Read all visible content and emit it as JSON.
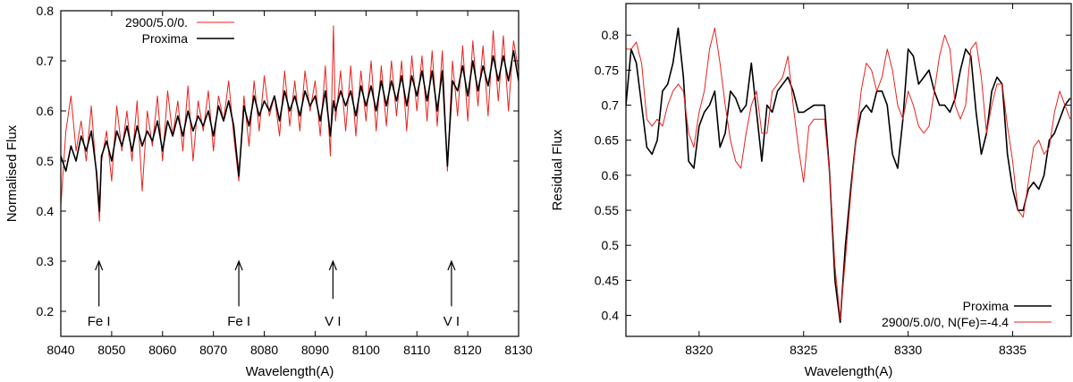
{
  "chart_data": [
    {
      "type": "line",
      "title": "",
      "xlabel": "Wavelength(A)",
      "ylabel": "Normalised Flux",
      "xlim": [
        8040,
        8130
      ],
      "ylim": [
        0.15,
        0.8
      ],
      "xticks": [
        8040,
        8050,
        8060,
        8070,
        8080,
        8090,
        8100,
        8110,
        8120,
        8130
      ],
      "yticks": [
        0.2,
        0.3,
        0.4,
        0.5,
        0.6,
        0.7,
        0.8
      ],
      "ytick_labels": [
        "0.2",
        "0.3",
        "0.4",
        "0.5",
        "0.6",
        "0.7",
        "0.8"
      ],
      "legend": "top-left",
      "series": [
        {
          "name": "2900/5.0/0.",
          "color": "#e8221e",
          "x": [
            8040,
            8041,
            8042,
            8043,
            8044,
            8045,
            8046,
            8047,
            8047.6,
            8048,
            8049,
            8050,
            8051,
            8052,
            8053,
            8054,
            8055,
            8056,
            8057,
            8058,
            8059,
            8060,
            8061,
            8062,
            8063,
            8064,
            8065,
            8066,
            8067,
            8068,
            8069,
            8070,
            8071,
            8072,
            8073,
            8074,
            8075,
            8076,
            8077,
            8078,
            8079,
            8080,
            8081,
            8082,
            8083,
            8084,
            8085,
            8086,
            8087,
            8088,
            8089,
            8090,
            8091,
            8092,
            8093,
            8093.6,
            8094,
            8095,
            8096,
            8097,
            8098,
            8099,
            8100,
            8101,
            8102,
            8103,
            8104,
            8105,
            8106,
            8107,
            8108,
            8109,
            8110,
            8111,
            8112,
            8113,
            8114,
            8115,
            8116,
            8117,
            8118,
            8119,
            8120,
            8121,
            8122,
            8123,
            8124,
            8125,
            8126,
            8127,
            8128,
            8129,
            8130
          ],
          "y": [
            0.41,
            0.56,
            0.63,
            0.52,
            0.58,
            0.5,
            0.61,
            0.47,
            0.38,
            0.5,
            0.56,
            0.46,
            0.61,
            0.52,
            0.6,
            0.5,
            0.62,
            0.44,
            0.6,
            0.53,
            0.63,
            0.5,
            0.64,
            0.55,
            0.62,
            0.52,
            0.65,
            0.5,
            0.62,
            0.56,
            0.64,
            0.52,
            0.63,
            0.58,
            0.66,
            0.55,
            0.46,
            0.63,
            0.53,
            0.66,
            0.56,
            0.67,
            0.59,
            0.63,
            0.55,
            0.68,
            0.57,
            0.66,
            0.56,
            0.68,
            0.6,
            0.66,
            0.55,
            0.69,
            0.51,
            0.77,
            0.58,
            0.68,
            0.56,
            0.69,
            0.55,
            0.68,
            0.58,
            0.7,
            0.56,
            0.69,
            0.57,
            0.7,
            0.59,
            0.7,
            0.56,
            0.71,
            0.6,
            0.71,
            0.58,
            0.72,
            0.57,
            0.72,
            0.48,
            0.7,
            0.59,
            0.73,
            0.58,
            0.74,
            0.61,
            0.73,
            0.59,
            0.76,
            0.62,
            0.75,
            0.6,
            0.74,
            0.68
          ]
        },
        {
          "name": "Proxima",
          "color": "#000000",
          "x": [
            8040,
            8041,
            8042,
            8043,
            8044,
            8045,
            8046,
            8047,
            8047.6,
            8048,
            8049,
            8050,
            8051,
            8052,
            8053,
            8054,
            8055,
            8056,
            8057,
            8058,
            8059,
            8060,
            8061,
            8062,
            8063,
            8064,
            8065,
            8066,
            8067,
            8068,
            8069,
            8070,
            8071,
            8072,
            8073,
            8074,
            8075,
            8076,
            8077,
            8078,
            8079,
            8080,
            8081,
            8082,
            8083,
            8084,
            8085,
            8086,
            8087,
            8088,
            8089,
            8090,
            8091,
            8092,
            8093,
            8093.6,
            8094,
            8095,
            8096,
            8097,
            8098,
            8099,
            8100,
            8101,
            8102,
            8103,
            8104,
            8105,
            8106,
            8107,
            8108,
            8109,
            8110,
            8111,
            8112,
            8113,
            8114,
            8115,
            8116,
            8117,
            8118,
            8119,
            8120,
            8121,
            8122,
            8123,
            8124,
            8125,
            8126,
            8127,
            8128,
            8129,
            8130
          ],
          "y": [
            0.51,
            0.48,
            0.53,
            0.5,
            0.55,
            0.52,
            0.56,
            0.48,
            0.4,
            0.51,
            0.54,
            0.5,
            0.56,
            0.53,
            0.57,
            0.52,
            0.57,
            0.53,
            0.56,
            0.54,
            0.58,
            0.52,
            0.58,
            0.55,
            0.59,
            0.55,
            0.6,
            0.56,
            0.59,
            0.57,
            0.6,
            0.55,
            0.61,
            0.58,
            0.62,
            0.57,
            0.47,
            0.61,
            0.57,
            0.63,
            0.59,
            0.62,
            0.6,
            0.63,
            0.58,
            0.64,
            0.6,
            0.63,
            0.59,
            0.64,
            0.61,
            0.63,
            0.58,
            0.64,
            0.55,
            0.62,
            0.6,
            0.64,
            0.61,
            0.64,
            0.59,
            0.65,
            0.61,
            0.65,
            0.6,
            0.66,
            0.61,
            0.66,
            0.62,
            0.67,
            0.61,
            0.67,
            0.63,
            0.68,
            0.62,
            0.68,
            0.6,
            0.68,
            0.49,
            0.66,
            0.64,
            0.69,
            0.63,
            0.7,
            0.64,
            0.69,
            0.65,
            0.71,
            0.66,
            0.71,
            0.66,
            0.72,
            0.66
          ]
        }
      ],
      "annotations": [
        {
          "label": "Fe I",
          "x": 8047.5,
          "arrow_tip": 0.3,
          "arrow_base": 0.21
        },
        {
          "label": "Fe I",
          "x": 8075,
          "arrow_tip": 0.3,
          "arrow_base": 0.21
        },
        {
          "label": "V I",
          "x": 8093.5,
          "arrow_tip": 0.3,
          "arrow_base": 0.225
        },
        {
          "label": "V I",
          "x": 8116.8,
          "arrow_tip": 0.3,
          "arrow_base": 0.21
        }
      ]
    },
    {
      "type": "line",
      "title": "",
      "xlabel": "Wavelength(A)",
      "ylabel": "Residual Flux",
      "xlim": [
        8316.5,
        8337.8
      ],
      "ylim": [
        0.37,
        0.845
      ],
      "xticks": [
        8320,
        8325,
        8330,
        8335
      ],
      "yticks": [
        0.4,
        0.45,
        0.5,
        0.55,
        0.6,
        0.65,
        0.7,
        0.75,
        0.8
      ],
      "ytick_labels": [
        "0.4",
        "0.45",
        "0.5",
        "0.55",
        "0.6",
        "0.65",
        "0.7",
        "0.75",
        "0.8"
      ],
      "legend": "bottom-right",
      "series": [
        {
          "name": "Proxima",
          "color": "#000000",
          "x": [
            8316.5,
            8316.75,
            8317,
            8317.25,
            8317.5,
            8317.75,
            8318,
            8318.25,
            8318.5,
            8318.75,
            8319,
            8319.25,
            8319.5,
            8319.75,
            8320,
            8320.25,
            8320.5,
            8320.75,
            8321,
            8321.25,
            8321.5,
            8321.75,
            8322,
            8322.25,
            8322.5,
            8322.75,
            8323,
            8323.25,
            8323.5,
            8323.75,
            8324,
            8324.25,
            8324.5,
            8324.75,
            8325,
            8325.25,
            8325.5,
            8325.75,
            8326,
            8326.25,
            8326.5,
            8326.75,
            8327,
            8327.25,
            8327.5,
            8327.75,
            8328,
            8328.25,
            8328.5,
            8328.75,
            8329,
            8329.25,
            8329.5,
            8329.75,
            8330,
            8330.25,
            8330.5,
            8330.75,
            8331,
            8331.25,
            8331.5,
            8331.75,
            8332,
            8332.25,
            8332.5,
            8332.75,
            8333,
            8333.25,
            8333.5,
            8333.75,
            8334,
            8334.25,
            8334.5,
            8334.75,
            8335,
            8335.25,
            8335.5,
            8335.75,
            8336,
            8336.25,
            8336.5,
            8336.75,
            8337,
            8337.25,
            8337.5,
            8337.75
          ],
          "y": [
            0.7,
            0.78,
            0.76,
            0.7,
            0.64,
            0.63,
            0.65,
            0.72,
            0.73,
            0.76,
            0.81,
            0.74,
            0.62,
            0.61,
            0.67,
            0.69,
            0.7,
            0.72,
            0.64,
            0.66,
            0.72,
            0.71,
            0.69,
            0.7,
            0.76,
            0.69,
            0.62,
            0.7,
            0.69,
            0.72,
            0.73,
            0.74,
            0.72,
            0.69,
            0.69,
            0.695,
            0.7,
            0.7,
            0.7,
            0.6,
            0.45,
            0.39,
            0.5,
            0.58,
            0.65,
            0.69,
            0.7,
            0.69,
            0.72,
            0.72,
            0.7,
            0.63,
            0.61,
            0.68,
            0.78,
            0.77,
            0.73,
            0.74,
            0.75,
            0.72,
            0.7,
            0.7,
            0.69,
            0.71,
            0.75,
            0.78,
            0.77,
            0.69,
            0.63,
            0.66,
            0.72,
            0.74,
            0.73,
            0.63,
            0.58,
            0.55,
            0.55,
            0.58,
            0.59,
            0.58,
            0.6,
            0.65,
            0.66,
            0.68,
            0.7,
            0.71
          ]
        },
        {
          "name": "2900/5.0/0, N(Fe)=-4.4",
          "color": "#e8221e",
          "x": [
            8316.5,
            8316.75,
            8317,
            8317.25,
            8317.5,
            8317.75,
            8318,
            8318.25,
            8318.5,
            8318.75,
            8319,
            8319.25,
            8319.5,
            8319.75,
            8320,
            8320.25,
            8320.5,
            8320.75,
            8321,
            8321.25,
            8321.5,
            8321.75,
            8322,
            8322.25,
            8322.5,
            8322.75,
            8323,
            8323.25,
            8323.5,
            8323.75,
            8324,
            8324.25,
            8324.5,
            8324.75,
            8325,
            8325.25,
            8325.5,
            8325.75,
            8326,
            8326.25,
            8326.5,
            8326.75,
            8327,
            8327.25,
            8327.5,
            8327.75,
            8328,
            8328.25,
            8328.5,
            8328.75,
            8329,
            8329.25,
            8329.5,
            8329.75,
            8330,
            8330.25,
            8330.5,
            8330.75,
            8331,
            8331.25,
            8331.5,
            8331.75,
            8332,
            8332.25,
            8332.5,
            8332.75,
            8333,
            8333.25,
            8333.5,
            8333.75,
            8334,
            8334.25,
            8334.5,
            8334.75,
            8335,
            8335.25,
            8335.5,
            8335.75,
            8336,
            8336.25,
            8336.5,
            8336.75,
            8337,
            8337.25,
            8337.5,
            8337.75
          ],
          "y": [
            0.78,
            0.78,
            0.79,
            0.76,
            0.68,
            0.67,
            0.68,
            0.67,
            0.7,
            0.72,
            0.73,
            0.72,
            0.66,
            0.64,
            0.69,
            0.72,
            0.78,
            0.81,
            0.76,
            0.7,
            0.65,
            0.62,
            0.61,
            0.66,
            0.7,
            0.72,
            0.66,
            0.66,
            0.72,
            0.73,
            0.74,
            0.77,
            0.7,
            0.64,
            0.59,
            0.67,
            0.68,
            0.68,
            0.68,
            0.6,
            0.47,
            0.395,
            0.48,
            0.57,
            0.65,
            0.72,
            0.76,
            0.75,
            0.72,
            0.74,
            0.78,
            0.75,
            0.7,
            0.68,
            0.72,
            0.7,
            0.67,
            0.66,
            0.67,
            0.72,
            0.77,
            0.8,
            0.78,
            0.7,
            0.68,
            0.7,
            0.78,
            0.79,
            0.74,
            0.66,
            0.7,
            0.73,
            0.73,
            0.67,
            0.62,
            0.55,
            0.54,
            0.59,
            0.64,
            0.65,
            0.63,
            0.64,
            0.69,
            0.72,
            0.7,
            0.68
          ]
        }
      ]
    }
  ]
}
